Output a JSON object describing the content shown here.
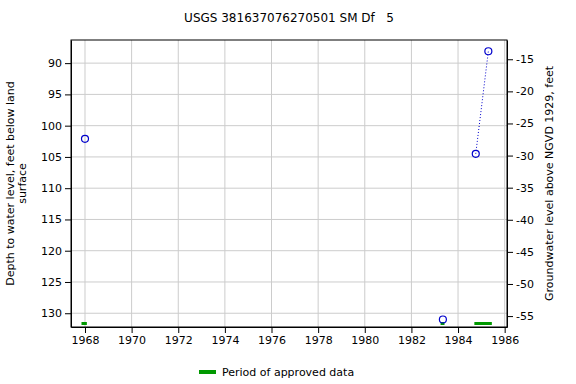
{
  "chart_data": {
    "type": "scatter",
    "title": "USGS 381637076270501 SM Df   5",
    "y_label": [
      "Depth to water level, feet below land",
      "surface"
    ],
    "y2_label": "Groundwater level above NGVD 1929, feet",
    "xlim": [
      1967.4,
      1986.1
    ],
    "xticks": [
      1968,
      1970,
      1972,
      1974,
      1976,
      1978,
      1980,
      1982,
      1984,
      1986
    ],
    "ylim": [
      132.2,
      86.3
    ],
    "yticks": [
      90,
      95,
      100,
      105,
      110,
      115,
      120,
      125,
      130
    ],
    "y2lim": [
      -56.7,
      -12.0
    ],
    "y2ticks": [
      -15,
      -20,
      -25,
      -30,
      -35,
      -40,
      -45,
      -50,
      -55
    ],
    "grid": true,
    "legend": "bottom",
    "series": [
      {
        "type": "scatter",
        "marker": "circle",
        "color": "#0000cc",
        "x": [
          1968.0,
          1983.35
        ],
        "values": [
          102.1,
          131.0
        ]
      },
      {
        "type": "line",
        "marker": "circle",
        "line_style": "dotted",
        "color": "#0000cc",
        "x": [
          1984.76,
          1985.3
        ],
        "values": [
          104.5,
          88.1
        ]
      }
    ],
    "approved_periods": {
      "name": "Period of approved data",
      "color": "#009900",
      "x": [
        [
          1967.85,
          1968.08
        ],
        [
          1983.25,
          1983.42
        ],
        [
          1984.7,
          1985.45
        ]
      ]
    }
  }
}
